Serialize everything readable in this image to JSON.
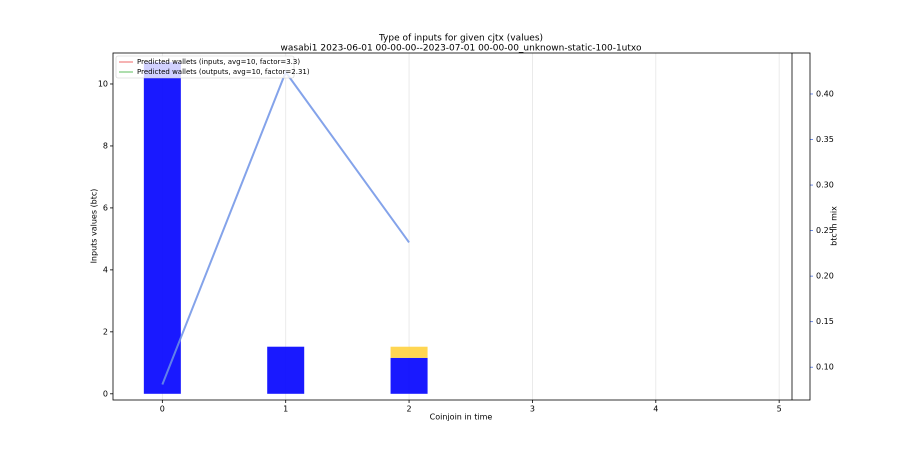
{
  "chart_data": {
    "type": "bar",
    "title": "Type of inputs for given cjtx (values)",
    "subtitle": "wasabi1 2023-06-01 00-00-00--2023-07-01 00-00-00_unknown-static-100-1utxo",
    "x_label": "Coinjoin in time",
    "y_label": "Inputs values (btc)",
    "y2_label": "btc in mix",
    "x": [
      0,
      1,
      2
    ],
    "series": [
      {
        "color": "#0000ff",
        "values": [
          10.7,
          1.52,
          1.16
        ]
      },
      {
        "color": "#ffd23f",
        "values": [
          null,
          null,
          0.36
        ]
      },
      {
        "type": "line",
        "axis": "y2",
        "color": "#6f93e6",
        "values": [
          0.081,
          0.424,
          0.237
        ]
      }
    ],
    "legend": [
      {
        "name": "Predicted wallets (inputs, avg=10, factor=3.3)",
        "color": "#f08080"
      },
      {
        "name": "Predicted wallets (outputs, avg=10, factor=2.31)",
        "color": "#77c777"
      }
    ],
    "xlim": [
      -0.4,
      5.25
    ],
    "xticks": [
      0,
      1,
      2,
      3,
      4,
      5
    ],
    "ylim": [
      -0.2,
      11.0
    ],
    "yticks": [
      0,
      2,
      4,
      6,
      8,
      10
    ],
    "y2lim": [
      0.064,
      0.445
    ],
    "y2ticks": [
      {
        "value": 0.1,
        "label": "0.10"
      },
      0.15,
      {
        "value": 0.2,
        "label": "0.20"
      },
      0.25,
      {
        "value": 0.3,
        "label": "0.30"
      },
      0.35,
      {
        "value": 0.4,
        "label": "0.40"
      }
    ],
    "y2_color": "#4a6fe3",
    "bar_width": 0.3,
    "grid": true
  }
}
